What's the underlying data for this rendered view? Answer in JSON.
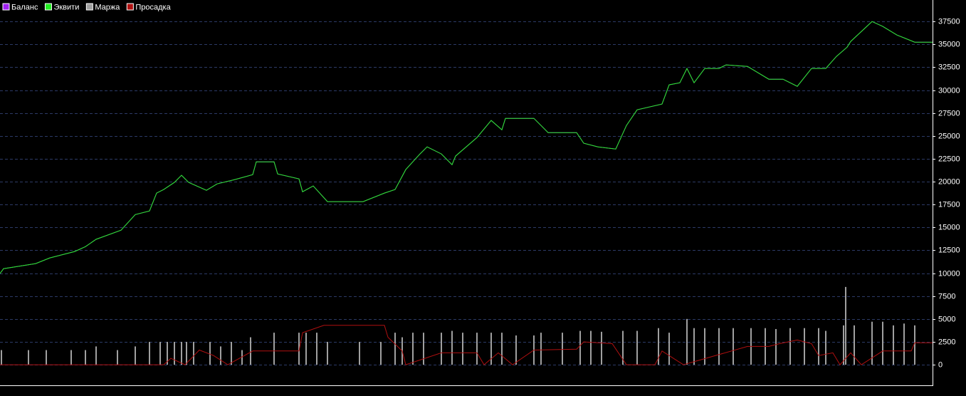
{
  "chart_data": {
    "type": "line",
    "xlim": [
      0,
      1310
    ],
    "ylim": [
      -2250,
      39850
    ],
    "yticks": [
      0,
      2500,
      5000,
      7500,
      10000,
      12500,
      15000,
      17500,
      20000,
      22500,
      25000,
      27500,
      30000,
      32500,
      35000,
      37500
    ],
    "grid": true,
    "legend": "top-left",
    "series": [
      {
        "name": "Баланс",
        "color": "#a020f0",
        "kind": "line",
        "x": [
          0,
          5,
          50,
          70,
          105,
          120,
          135,
          170,
          190,
          210,
          220,
          230,
          245,
          255,
          265,
          290,
          305,
          330,
          355,
          360,
          385,
          390,
          420,
          425,
          440,
          460,
          510,
          540,
          555,
          570,
          590,
          600,
          620,
          635,
          640,
          670,
          690,
          705,
          710,
          750,
          770,
          810,
          820,
          840,
          865,
          880,
          895,
          930,
          940,
          955,
          965,
          975,
          990,
          1010,
          1020,
          1050,
          1080,
          1100,
          1120,
          1140,
          1160,
          1175,
          1190,
          1195,
          1225,
          1240,
          1260,
          1285,
          1310
        ],
        "values": [
          9960,
          10500,
          11050,
          11670,
          12370,
          12900,
          13700,
          14700,
          16400,
          16800,
          18750,
          19140,
          19920,
          20700,
          19920,
          19060,
          19760,
          20230,
          20770,
          22170,
          22170,
          20850,
          20300,
          18900,
          19530,
          17820,
          17820,
          18750,
          19140,
          21320,
          23030,
          23800,
          23030,
          21860,
          22800,
          24820,
          26690,
          25670,
          26920,
          26920,
          25360,
          25360,
          24200,
          23800,
          23570,
          26140,
          27850,
          28480,
          30580,
          30810,
          32370,
          30810,
          32370,
          32370,
          32760,
          32600,
          31200,
          31200,
          30420,
          32370,
          32370,
          33690,
          34700,
          35320,
          37500,
          36960,
          36020,
          35240,
          35240
        ]
      },
      {
        "name": "Эквити",
        "color": "#22ee22",
        "kind": "line",
        "x": [
          0,
          5,
          50,
          70,
          105,
          120,
          135,
          170,
          190,
          210,
          220,
          230,
          245,
          255,
          265,
          290,
          305,
          330,
          355,
          360,
          385,
          390,
          420,
          425,
          440,
          460,
          510,
          540,
          555,
          570,
          590,
          600,
          620,
          635,
          640,
          670,
          690,
          705,
          710,
          750,
          770,
          810,
          820,
          840,
          865,
          880,
          895,
          930,
          940,
          955,
          965,
          975,
          990,
          1010,
          1020,
          1050,
          1080,
          1100,
          1120,
          1140,
          1160,
          1175,
          1190,
          1195,
          1225,
          1240,
          1260,
          1285,
          1310
        ],
        "values": [
          9960,
          10500,
          11050,
          11670,
          12370,
          12900,
          13700,
          14700,
          16400,
          16800,
          18750,
          19140,
          19920,
          20700,
          19920,
          19060,
          19760,
          20230,
          20770,
          22170,
          22170,
          20850,
          20300,
          18900,
          19530,
          17820,
          17820,
          18750,
          19140,
          21320,
          23030,
          23800,
          23030,
          21860,
          22800,
          24820,
          26690,
          25670,
          26920,
          26920,
          25360,
          25360,
          24200,
          23800,
          23570,
          26140,
          27850,
          28480,
          30580,
          30810,
          32370,
          30810,
          32370,
          32370,
          32760,
          32600,
          31200,
          31200,
          30420,
          32370,
          32370,
          33690,
          34700,
          35320,
          37500,
          36960,
          36020,
          35240,
          35240
        ]
      },
      {
        "name": "Маржа",
        "color": "#a0a0a0",
        "kind": "bars",
        "x": [
          2,
          40,
          65,
          100,
          120,
          135,
          165,
          190,
          210,
          225,
          235,
          245,
          255,
          262,
          272,
          295,
          310,
          325,
          340,
          352,
          385,
          420,
          430,
          445,
          460,
          505,
          535,
          555,
          565,
          580,
          595,
          620,
          635,
          650,
          670,
          690,
          705,
          725,
          750,
          760,
          790,
          815,
          830,
          845,
          875,
          895,
          925,
          940,
          965,
          975,
          990,
          1010,
          1030,
          1055,
          1075,
          1090,
          1110,
          1130,
          1150,
          1160,
          1185,
          1188,
          1200,
          1225,
          1240,
          1255,
          1270,
          1285
        ],
        "values": [
          1600,
          1600,
          1600,
          1600,
          1600,
          2000,
          1600,
          2000,
          2500,
          2500,
          2500,
          2500,
          2500,
          2500,
          2500,
          2500,
          2000,
          2500,
          1600,
          3000,
          3500,
          3500,
          3500,
          3500,
          2500,
          2500,
          2500,
          3500,
          3000,
          3500,
          3500,
          3500,
          3700,
          3500,
          3500,
          3500,
          3500,
          3200,
          3200,
          3500,
          3500,
          3700,
          3700,
          3600,
          3700,
          3700,
          4000,
          3500,
          5000,
          4000,
          4000,
          4000,
          4000,
          4000,
          4000,
          3900,
          4000,
          4000,
          4000,
          3700,
          4300,
          8500,
          4300,
          4700,
          4700,
          4300,
          4500,
          4300
        ]
      },
      {
        "name": "Просадка",
        "color": "#b01010",
        "kind": "line",
        "x": [
          0,
          230,
          240,
          260,
          280,
          300,
          320,
          355,
          420,
          425,
          455,
          540,
          545,
          565,
          570,
          620,
          670,
          680,
          700,
          720,
          750,
          810,
          820,
          860,
          880,
          920,
          930,
          960,
          1050,
          1080,
          1095,
          1120,
          1140,
          1150,
          1170,
          1180,
          1195,
          1210,
          1240,
          1280,
          1285,
          1310
        ],
        "values": [
          0,
          0,
          700,
          0,
          1600,
          1000,
          0,
          1500,
          1500,
          3500,
          4300,
          4300,
          3000,
          1500,
          0,
          1300,
          1300,
          0,
          1300,
          0,
          1600,
          1700,
          2500,
          2300,
          0,
          0,
          1500,
          0,
          2000,
          2000,
          2300,
          2700,
          2300,
          1000,
          1300,
          0,
          1300,
          0,
          1500,
          1500,
          2400,
          2400
        ]
      }
    ]
  }
}
